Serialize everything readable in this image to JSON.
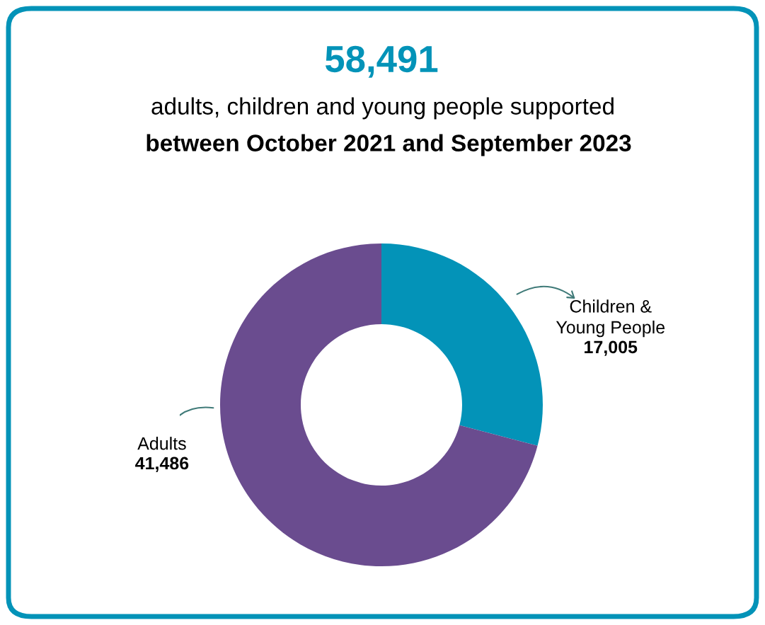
{
  "chart_data": {
    "type": "donut",
    "title": "58,491",
    "subtitle": "adults, children and young people supported",
    "annotations": [
      "between October 2021 and September 2023"
    ],
    "categories": [
      "Children &\nYoung People",
      "Adults"
    ],
    "values": [
      17005,
      41486
    ],
    "colors": [
      "#0393b8",
      "#6a4c8f"
    ],
    "value_labels": [
      "17,005",
      "41,486"
    ],
    "legend": false
  }
}
